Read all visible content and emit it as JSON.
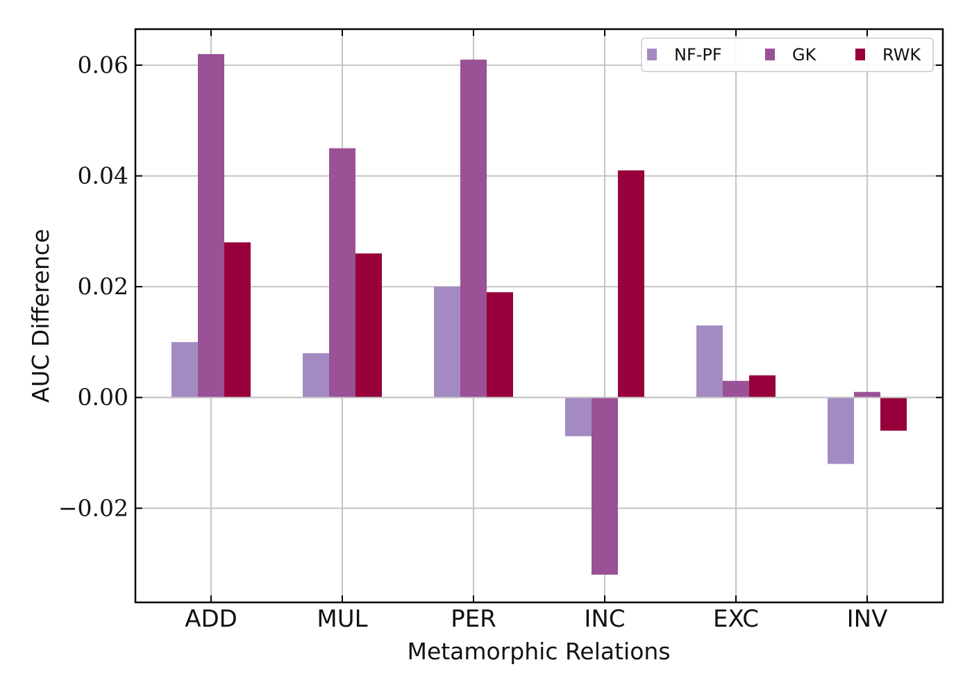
{
  "chart_data": {
    "type": "bar",
    "categories": [
      "ADD",
      "MUL",
      "PER",
      "INC",
      "EXC",
      "INV"
    ],
    "series": [
      {
        "name": "NF-PF",
        "color": "#a38bc2",
        "values": [
          0.01,
          0.008,
          0.02,
          -0.007,
          0.013,
          -0.012
        ]
      },
      {
        "name": "GK",
        "color": "#9a5196",
        "values": [
          0.062,
          0.045,
          0.061,
          -0.032,
          0.003,
          0.001
        ]
      },
      {
        "name": "RWK",
        "color": "#97003b",
        "values": [
          0.028,
          0.026,
          0.019,
          0.041,
          0.004,
          -0.006
        ]
      }
    ],
    "xlabel": "Metamorphic Relations",
    "ylabel": "AUC Difference",
    "ylim": [
      -0.037,
      0.0665
    ],
    "yticks": [
      -0.02,
      0.0,
      0.02,
      0.04,
      0.06
    ],
    "ytick_labels": [
      "−0.02",
      "0.00",
      "0.02",
      "0.04",
      "0.06"
    ],
    "grid": true,
    "legend_position": "top-right"
  }
}
